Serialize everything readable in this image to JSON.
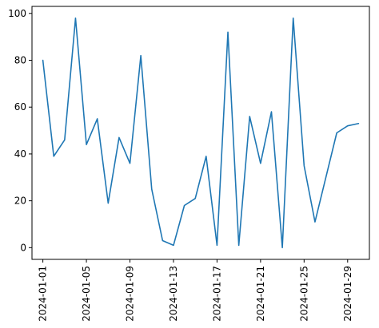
{
  "chart_data": {
    "type": "line",
    "title": "",
    "xlabel": "",
    "ylabel": "",
    "x": [
      "2024-01-01",
      "2024-01-02",
      "2024-01-03",
      "2024-01-04",
      "2024-01-05",
      "2024-01-06",
      "2024-01-07",
      "2024-01-08",
      "2024-01-09",
      "2024-01-10",
      "2024-01-11",
      "2024-01-12",
      "2024-01-13",
      "2024-01-14",
      "2024-01-15",
      "2024-01-16",
      "2024-01-17",
      "2024-01-18",
      "2024-01-19",
      "2024-01-20",
      "2024-01-21",
      "2024-01-22",
      "2024-01-23",
      "2024-01-24",
      "2024-01-25",
      "2024-01-26",
      "2024-01-27",
      "2024-01-28",
      "2024-01-29",
      "2024-01-30"
    ],
    "series": [
      {
        "values": [
          80,
          39,
          46,
          98,
          44,
          55,
          19,
          47,
          36,
          82,
          25,
          3,
          1,
          18,
          21,
          39,
          1,
          92,
          1,
          56,
          36,
          58,
          0,
          98,
          35,
          11,
          30,
          49,
          52,
          53
        ],
        "color": "#1f77b4"
      }
    ],
    "xlim": [
      "2023-12-31",
      "2024-01-31"
    ],
    "ylim": [
      -5,
      103
    ],
    "x_ticks": [
      "2024-01-01",
      "2024-01-05",
      "2024-01-09",
      "2024-01-13",
      "2024-01-17",
      "2024-01-21",
      "2024-01-25",
      "2024-01-29"
    ],
    "y_ticks": [
      0,
      20,
      40,
      60,
      80,
      100
    ],
    "grid": false,
    "legend": "none"
  }
}
